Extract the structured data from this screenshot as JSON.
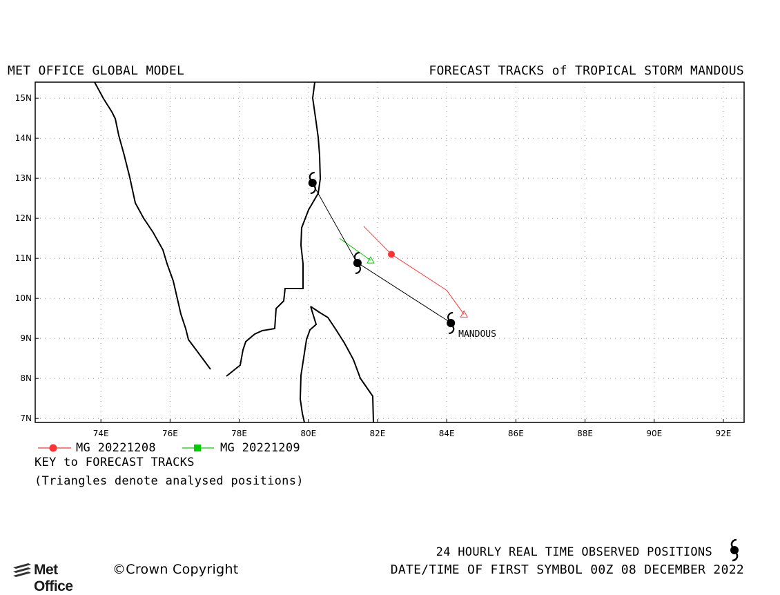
{
  "header": {
    "model": "MET OFFICE GLOBAL MODEL",
    "title": "FORECAST TRACKS of TROPICAL STORM MANDOUS"
  },
  "map": {
    "lon_range": [
      72.1,
      92.6
    ],
    "lat_range": [
      6.9,
      15.4
    ],
    "lon_ticks": [
      "74E",
      "76E",
      "78E",
      "80E",
      "82E",
      "84E",
      "86E",
      "88E",
      "90E",
      "92E"
    ],
    "lat_ticks": [
      "15N",
      "14N",
      "13N",
      "12N",
      "11N",
      "10N",
      "9N",
      "8N",
      "7N"
    ],
    "grid": "dotted",
    "storm_label": "MANDOUS"
  },
  "tracks": {
    "observed": {
      "color": "#000000",
      "symbol": "cyclone-icon",
      "positions": [
        [
          84.1,
          9.4
        ],
        [
          81.4,
          10.9
        ],
        [
          80.1,
          12.9
        ]
      ]
    },
    "forecasts": [
      {
        "name": "MG 20221208",
        "color": "#ff3333",
        "marker": "circle",
        "analysed": [
          84.5,
          9.6
        ],
        "points": [
          [
            84.5,
            9.6
          ],
          [
            84.0,
            10.2
          ],
          [
            82.4,
            11.1
          ],
          [
            81.6,
            11.8
          ]
        ]
      },
      {
        "name": "MG 20221209",
        "color": "#00cc00",
        "marker": "square",
        "analysed": [
          81.8,
          10.95
        ],
        "points": [
          [
            81.8,
            10.95
          ],
          [
            80.9,
            11.5
          ]
        ]
      }
    ]
  },
  "legend": {
    "items": [
      {
        "label": "MG 20221208",
        "color": "#ff3333",
        "marker": "circle"
      },
      {
        "label": "MG 20221209",
        "color": "#00cc00",
        "marker": "square"
      }
    ],
    "key_title": "KEY to FORECAST TRACKS",
    "key_note": "(Triangles denote analysed positions)"
  },
  "footer": {
    "observed_positions": "24 HOURLY REAL TIME OBSERVED POSITIONS",
    "date_time": "DATE/TIME OF FIRST SYMBOL 00Z 08 DECEMBER 2022",
    "logo_text": "Met Office",
    "copyright": "©Crown Copyright"
  }
}
